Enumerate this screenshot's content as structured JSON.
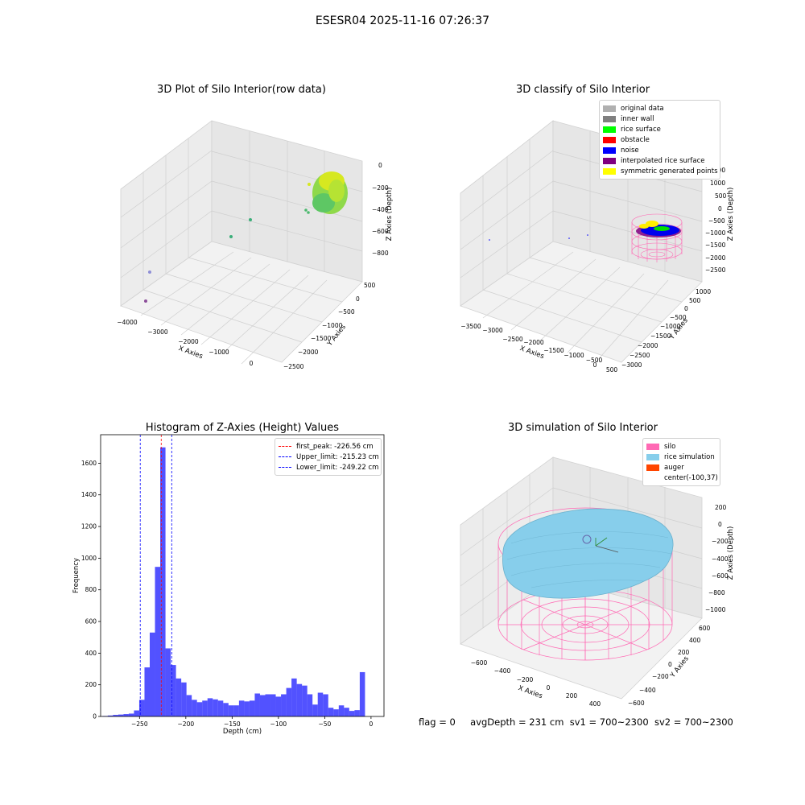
{
  "figure": {
    "suptitle": "ESESR04 2025-11-16 07:26:37",
    "footer": {
      "flag": "flag = 0",
      "avg_depth": "avgDepth = 231 cm",
      "sv1": "sv1 = 700~2300",
      "sv2": "sv2 = 700~2300"
    }
  },
  "panels": {
    "raw": {
      "title": "3D Plot of Silo Interior(row data)",
      "xlabel": "X Axies",
      "ylabel": "Y Axies",
      "zlabel": "Z Axies (Depth)",
      "xticks": [
        "−4000",
        "−3000",
        "−2000",
        "−1000",
        "0"
      ],
      "yticks": [
        "500",
        "0",
        "−500",
        "−1000",
        "−1500",
        "−2000",
        "−2500"
      ],
      "zticks": [
        "0",
        "−200",
        "−400",
        "−600",
        "−800"
      ]
    },
    "classify": {
      "title": "3D classify of Silo Interior",
      "xlabel": "X Axies",
      "ylabel": "Y Axies",
      "zlabel": "Z Axies (Depth)",
      "xticks": [
        "−3500",
        "−3000",
        "−2500",
        "−2000",
        "−1500",
        "−1000",
        "−500",
        "0",
        "500"
      ],
      "yticks": [
        "1000",
        "500",
        "0",
        "−500",
        "−1000",
        "−1500",
        "−2000",
        "−2500",
        "−3000"
      ],
      "zticks": [
        "1500",
        "1000",
        "500",
        "0",
        "−500",
        "−1000",
        "−1500",
        "−2000",
        "−2500"
      ],
      "legend": [
        {
          "label": "original data",
          "color": "#b0b0b0"
        },
        {
          "label": "inner wall",
          "color": "#808080"
        },
        {
          "label": "rice surface",
          "color": "#00ff00"
        },
        {
          "label": "obstacle",
          "color": "#ff0000"
        },
        {
          "label": "noise",
          "color": "#0000ff"
        },
        {
          "label": "interpolated rice surface",
          "color": "#800080"
        },
        {
          "label": "symmetric generated points",
          "color": "#ffff00"
        }
      ]
    },
    "hist": {
      "title": "Histogram of Z-Axies (Height) Values",
      "legend": [
        {
          "label": "first_peak: -226.56 cm",
          "color": "#ff0000"
        },
        {
          "label": "Upper_limit: -215.23 cm",
          "color": "#0000ff"
        },
        {
          "label": "Lower_limit: -249.22 cm",
          "color": "#0000ff"
        }
      ]
    },
    "sim": {
      "title": "3D simulation of Silo Interior",
      "xlabel": "X Axies",
      "ylabel": "Y Axies",
      "zlabel": "Z Axies (Depth)",
      "xticks": [
        "−600",
        "−400",
        "−200",
        "0",
        "200",
        "400"
      ],
      "yticks": [
        "600",
        "400",
        "200",
        "0",
        "−200",
        "−400",
        "−600"
      ],
      "zticks": [
        "200",
        "0",
        "−200",
        "−400",
        "−600",
        "−800",
        "−1000"
      ],
      "legend": [
        {
          "label": "silo",
          "color": "#ff69b4"
        },
        {
          "label": "rice simulation",
          "color": "#87ceeb"
        },
        {
          "label": "auger",
          "color": "#ff4500"
        },
        {
          "label": "center(-100,37)",
          "color": ""
        }
      ]
    }
  },
  "chart_data": [
    {
      "type": "bar",
      "title": "Histogram of Z-Axies (Height) Values",
      "xlabel": "Depth (cm)",
      "ylabel": "Frequency",
      "xlim": [
        -292,
        14
      ],
      "ylim": [
        0,
        1780
      ],
      "xticks": [
        -250,
        -200,
        -150,
        -100,
        -50,
        0
      ],
      "yticks": [
        0,
        200,
        400,
        600,
        800,
        1000,
        1200,
        1400,
        1600
      ],
      "bar_color": "#0000ff",
      "bin_start": -290,
      "bin_width": 5.67,
      "values": [
        3,
        6,
        10,
        12,
        15,
        18,
        38,
        105,
        310,
        530,
        945,
        1700,
        430,
        325,
        240,
        215,
        135,
        105,
        90,
        100,
        115,
        108,
        100,
        85,
        70,
        70,
        100,
        95,
        100,
        145,
        135,
        140,
        140,
        125,
        140,
        180,
        240,
        205,
        195,
        140,
        75,
        150,
        140,
        55,
        45,
        70,
        55,
        35,
        40,
        280
      ],
      "vlines": [
        {
          "x": -226.56,
          "color": "#ff0000",
          "label": "first_peak: -226.56 cm"
        },
        {
          "x": -215.23,
          "color": "#0000ff",
          "label": "Upper_limit: -215.23 cm"
        },
        {
          "x": -249.22,
          "color": "#0000ff",
          "label": "Lower_limit: -249.22 cm"
        }
      ]
    }
  ]
}
